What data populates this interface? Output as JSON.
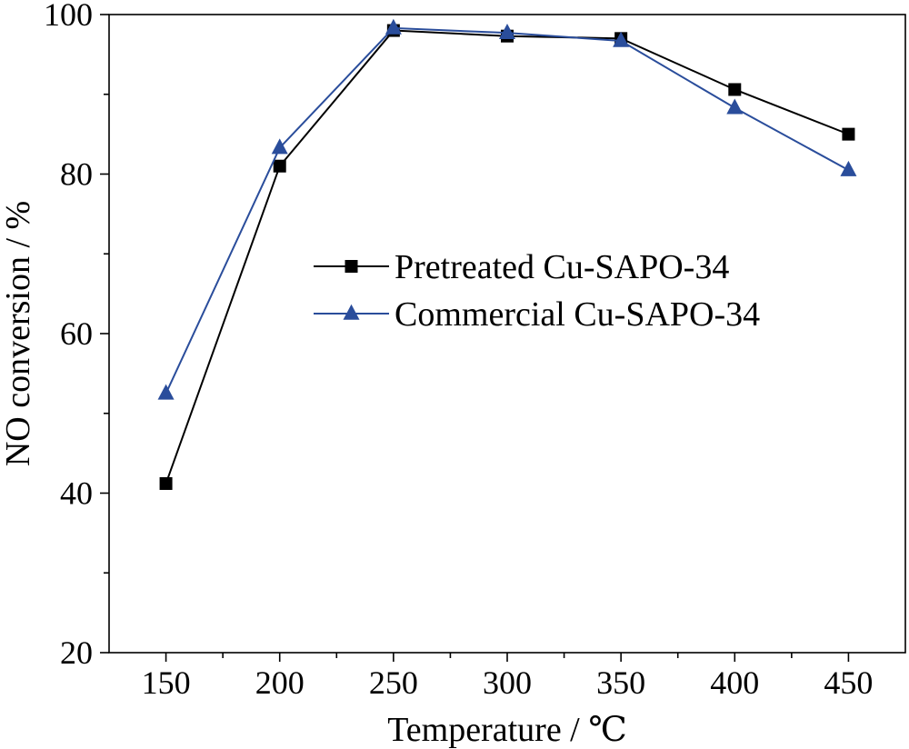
{
  "chart_data": {
    "type": "line",
    "xlabel": "Temperature / ℃",
    "ylabel": "NO conversion / %",
    "xlim": [
      125,
      475
    ],
    "ylim": [
      20,
      100
    ],
    "xticks": [
      150,
      200,
      250,
      300,
      350,
      400,
      450
    ],
    "yticks": [
      20,
      40,
      60,
      80,
      100
    ],
    "grid": false,
    "legend_position": "center-right",
    "series": [
      {
        "name": "Pretreated Cu-SAPO-34",
        "color": "#000000",
        "marker": "square",
        "x": [
          150,
          200,
          250,
          300,
          350,
          400,
          450
        ],
        "y": [
          41.2,
          81.0,
          98.0,
          97.3,
          97.0,
          90.6,
          85.0
        ]
      },
      {
        "name": "Commercial Cu-SAPO-34",
        "color": "#2a4d9b",
        "marker": "triangle",
        "x": [
          150,
          200,
          250,
          300,
          350,
          400,
          450
        ],
        "y": [
          52.5,
          83.3,
          98.3,
          97.7,
          96.7,
          88.3,
          80.5
        ]
      }
    ]
  }
}
